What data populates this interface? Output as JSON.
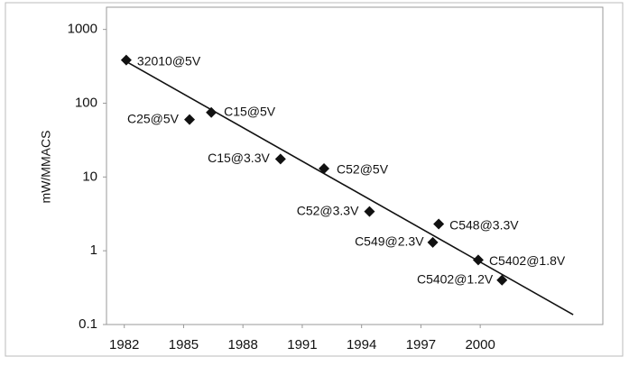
{
  "chart_data": {
    "type": "scatter",
    "y_label": "mW/MMACS",
    "log_y": true,
    "color": "#111111",
    "x": [
      1982.1,
      1985.3,
      1986.4,
      1989.9,
      1992.1,
      1994.4,
      1997.9,
      1997.6,
      1999.9,
      2001.1
    ],
    "values": [
      385,
      60,
      75,
      17.5,
      13,
      3.4,
      2.3,
      1.3,
      0.75,
      0.4
    ],
    "point_labels": [
      "32010@5V",
      "C25@5V",
      "C15@5V",
      "C15@3.3V",
      "C52@5V",
      "C52@3.3V",
      "C548@3.3V",
      "C549@2.3V",
      "C5402@1.8V",
      "C5402@1.2V"
    ],
    "trend": {
      "x": [
        1982,
        2004.7
      ],
      "values": [
        380,
        0.136
      ]
    },
    "xlim": [
      1981.1,
      2006.2
    ],
    "xticks": [
      1982,
      1985,
      1988,
      1991,
      1994,
      1997,
      2000
    ],
    "ylim": [
      0.1,
      2000
    ],
    "yticks": [
      1000,
      100,
      10,
      1,
      0.1
    ]
  }
}
